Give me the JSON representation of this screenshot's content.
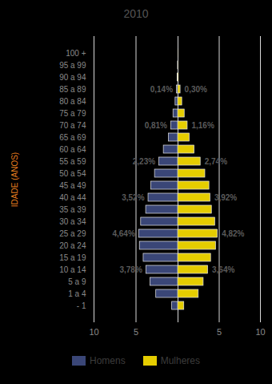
{
  "chart_data": {
    "type": "pyramid",
    "title": "2010",
    "orientation": "horizontal",
    "ylabel": "IDADE (ANOS)",
    "categories": [
      "100 +",
      "95 a 99",
      "90 a 94",
      "85 a 89",
      "80 a 84",
      "75 a 79",
      "70 a 74",
      "65 a 69",
      "60 a 64",
      "55 a 59",
      "50 a 54",
      "45 a 49",
      "40 a 44",
      "35 a 39",
      "30 a 34",
      "25 a 29",
      "20 a 24",
      "15 a 19",
      "10 a 14",
      "5 a 9",
      "1 a 4",
      "- 1"
    ],
    "series": [
      {
        "name": "Homens",
        "color": "#3a4677",
        "values": [
          0,
          0.01,
          0.04,
          0.14,
          0.3,
          0.55,
          0.81,
          1.1,
          1.7,
          2.23,
          2.75,
          3.2,
          3.52,
          3.8,
          4.4,
          4.64,
          4.55,
          4.1,
          3.78,
          3.3,
          2.6,
          0.7
        ],
        "value_labels": [
          null,
          null,
          null,
          "0,14%",
          null,
          null,
          "0,81%",
          null,
          null,
          "2,23%",
          null,
          null,
          "3,52%",
          null,
          null,
          "4,64%",
          null,
          null,
          "3,78%",
          null,
          null,
          null
        ]
      },
      {
        "name": "Mulheres",
        "color": "#e5cd00",
        "values": [
          0.01,
          0.02,
          0.08,
          0.3,
          0.5,
          0.8,
          1.16,
          1.4,
          2.0,
          2.74,
          3.3,
          3.8,
          3.92,
          4.1,
          4.5,
          4.82,
          4.6,
          4.0,
          3.64,
          3.1,
          2.5,
          0.75
        ],
        "value_labels": [
          null,
          null,
          null,
          "0,30%",
          null,
          null,
          "1,16%",
          null,
          null,
          "2,74%",
          null,
          null,
          "3,92%",
          null,
          null,
          "4,82%",
          null,
          null,
          "3,64%",
          null,
          null,
          null
        ]
      }
    ],
    "xlim": [
      0,
      10
    ],
    "xticks": [
      5,
      10
    ],
    "grid": true,
    "data_labels": true,
    "legend": "bottom"
  }
}
